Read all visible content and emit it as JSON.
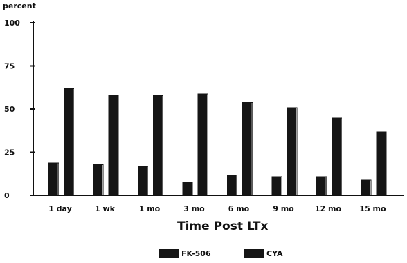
{
  "chart_data": {
    "type": "bar",
    "title": "",
    "ylabel": "percent",
    "xlabel": "Time Post LTx",
    "categories": [
      "1 day",
      "1 wk",
      "1 mo",
      "3 mo",
      "6 mo",
      "9 mo",
      "12 mo",
      "15 mo"
    ],
    "series": [
      {
        "name": "FK-506",
        "values": [
          19,
          18,
          17,
          8,
          12,
          11,
          11,
          9
        ]
      },
      {
        "name": "CYA",
        "values": [
          62,
          58,
          58,
          59,
          54,
          51,
          45,
          37
        ]
      }
    ],
    "ylim": [
      0,
      100
    ],
    "yticks": [
      "0",
      "25",
      "50",
      "75",
      "100"
    ],
    "grid": false,
    "legend_position": "bottom",
    "colors": {
      "bars": "#151515",
      "axis": "#111111"
    }
  }
}
